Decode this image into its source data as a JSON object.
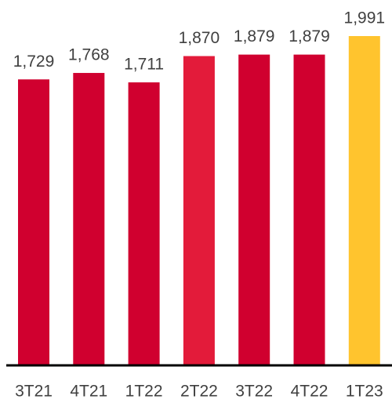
{
  "chart_data": {
    "type": "bar",
    "categories": [
      "3T21",
      "4T21",
      "1T22",
      "2T22",
      "3T22",
      "4T22",
      "1T23"
    ],
    "values": [
      1729,
      1768,
      1711,
      1870,
      1879,
      1879,
      1991
    ],
    "value_labels": [
      "1,729",
      "1,768",
      "1,711",
      "1,870",
      "1,879",
      "1,879",
      "1,991"
    ],
    "colors": [
      "#d0002f",
      "#d0002f",
      "#d0002f",
      "#e31b3a",
      "#d0002f",
      "#d0002f",
      "#ffc42e"
    ]
  }
}
